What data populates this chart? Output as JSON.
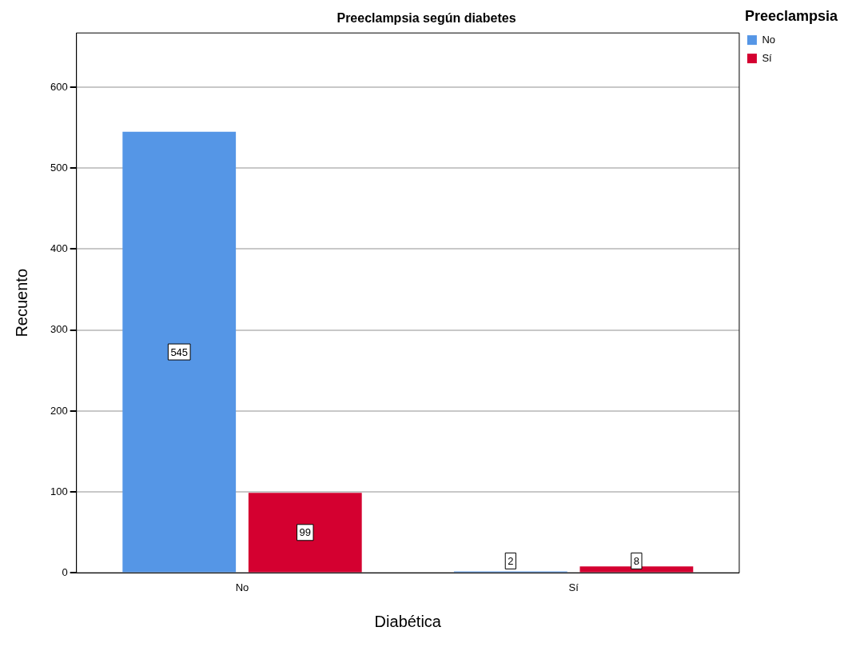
{
  "chart_data": {
    "type": "bar",
    "title": "Preeclampsia según diabetes",
    "xlabel": "Diabética",
    "ylabel": "Recuento",
    "legend_title": "Preeclampsia",
    "categories": [
      "No",
      "Sí"
    ],
    "series": [
      {
        "name": "No",
        "color": "#5596e6",
        "values": [
          545,
          2
        ]
      },
      {
        "name": "Sí",
        "color": "#d40030",
        "values": [
          99,
          8
        ]
      }
    ],
    "ylim": [
      0,
      667
    ],
    "yticks": [
      0,
      100,
      200,
      300,
      400,
      500,
      600
    ],
    "grid": "y",
    "legend": "top right",
    "data_labels": true
  }
}
